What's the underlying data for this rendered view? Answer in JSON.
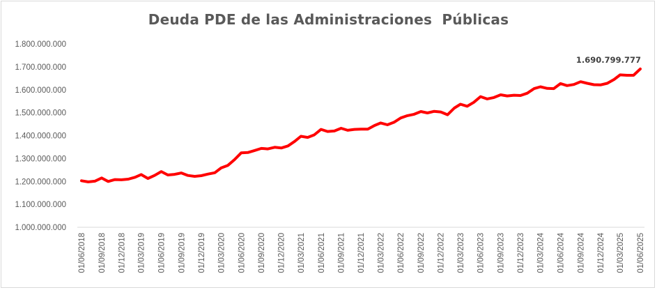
{
  "chart_data": {
    "type": "line",
    "title": "Deuda PDE de las Administraciones  Públicas",
    "xlabel": "",
    "ylabel": "",
    "ylim": [
      1000000000,
      1800000000
    ],
    "y_ticks": [
      "1.000.000.000",
      "1.100.000.000",
      "1.200.000.000",
      "1.300.000.000",
      "1.400.000.000",
      "1.500.000.000",
      "1.600.000.000",
      "1.700.000.000",
      "1.800.000.000"
    ],
    "x_ticks": [
      "01/06/2018",
      "01/09/2018",
      "01/12/2018",
      "01/03/2019",
      "01/06/2019",
      "01/09/2019",
      "01/12/2019",
      "01/03/2020",
      "01/06/2020",
      "01/09/2020",
      "01/12/2020",
      "01/03/2021",
      "01/06/2021",
      "01/09/2021",
      "01/12/2021",
      "01/03/2022",
      "01/06/2022",
      "01/09/2022",
      "01/12/2022",
      "01/03/2023",
      "01/06/2023",
      "01/09/2023",
      "01/12/2023",
      "01/03/2024",
      "01/06/2024",
      "01/09/2024",
      "01/12/2024",
      "01/03/2025",
      "01/06/2025"
    ],
    "grid": false,
    "series": [
      {
        "color": "#ff0000",
        "points": [
          [
            "2018-06-01",
            1203000000
          ],
          [
            "2018-07-01",
            1198000000
          ],
          [
            "2018-08-01",
            1201000000
          ],
          [
            "2018-09-01",
            1215000000
          ],
          [
            "2018-10-01",
            1200000000
          ],
          [
            "2018-11-01",
            1208000000
          ],
          [
            "2018-12-01",
            1207000000
          ],
          [
            "2019-01-01",
            1210000000
          ],
          [
            "2019-02-01",
            1218000000
          ],
          [
            "2019-03-01",
            1230000000
          ],
          [
            "2019-04-01",
            1213000000
          ],
          [
            "2019-05-01",
            1226000000
          ],
          [
            "2019-06-01",
            1243000000
          ],
          [
            "2019-07-01",
            1228000000
          ],
          [
            "2019-08-01",
            1231000000
          ],
          [
            "2019-09-01",
            1237000000
          ],
          [
            "2019-10-01",
            1226000000
          ],
          [
            "2019-11-01",
            1222000000
          ],
          [
            "2019-12-01",
            1225000000
          ],
          [
            "2020-01-01",
            1232000000
          ],
          [
            "2020-02-01",
            1238000000
          ],
          [
            "2020-03-01",
            1259000000
          ],
          [
            "2020-04-01",
            1270000000
          ],
          [
            "2020-05-01",
            1295000000
          ],
          [
            "2020-06-01",
            1325000000
          ],
          [
            "2020-07-01",
            1326000000
          ],
          [
            "2020-08-01",
            1335000000
          ],
          [
            "2020-09-01",
            1344000000
          ],
          [
            "2020-10-01",
            1342000000
          ],
          [
            "2020-11-01",
            1349000000
          ],
          [
            "2020-12-01",
            1346000000
          ],
          [
            "2021-01-01",
            1355000000
          ],
          [
            "2021-02-01",
            1375000000
          ],
          [
            "2021-03-01",
            1397000000
          ],
          [
            "2021-04-01",
            1392000000
          ],
          [
            "2021-05-01",
            1403000000
          ],
          [
            "2021-06-01",
            1427000000
          ],
          [
            "2021-07-01",
            1418000000
          ],
          [
            "2021-08-01",
            1420000000
          ],
          [
            "2021-09-01",
            1432000000
          ],
          [
            "2021-10-01",
            1423000000
          ],
          [
            "2021-11-01",
            1427000000
          ],
          [
            "2021-12-01",
            1428000000
          ],
          [
            "2022-01-01",
            1428000000
          ],
          [
            "2022-02-01",
            1444000000
          ],
          [
            "2022-03-01",
            1455000000
          ],
          [
            "2022-04-01",
            1447000000
          ],
          [
            "2022-05-01",
            1458000000
          ],
          [
            "2022-06-01",
            1477000000
          ],
          [
            "2022-07-01",
            1487000000
          ],
          [
            "2022-08-01",
            1493000000
          ],
          [
            "2022-09-01",
            1505000000
          ],
          [
            "2022-10-01",
            1499000000
          ],
          [
            "2022-11-01",
            1506000000
          ],
          [
            "2022-12-01",
            1503000000
          ],
          [
            "2023-01-01",
            1491000000
          ],
          [
            "2023-02-01",
            1520000000
          ],
          [
            "2023-03-01",
            1537000000
          ],
          [
            "2023-04-01",
            1528000000
          ],
          [
            "2023-05-01",
            1545000000
          ],
          [
            "2023-06-01",
            1570000000
          ],
          [
            "2023-07-01",
            1560000000
          ],
          [
            "2023-08-01",
            1566000000
          ],
          [
            "2023-09-01",
            1578000000
          ],
          [
            "2023-10-01",
            1573000000
          ],
          [
            "2023-11-01",
            1576000000
          ],
          [
            "2023-12-01",
            1575000000
          ],
          [
            "2024-01-01",
            1585000000
          ],
          [
            "2024-02-01",
            1605000000
          ],
          [
            "2024-03-01",
            1613000000
          ],
          [
            "2024-04-01",
            1606000000
          ],
          [
            "2024-05-01",
            1605000000
          ],
          [
            "2024-06-01",
            1627000000
          ],
          [
            "2024-07-01",
            1618000000
          ],
          [
            "2024-08-01",
            1623000000
          ],
          [
            "2024-09-01",
            1635000000
          ],
          [
            "2024-10-01",
            1628000000
          ],
          [
            "2024-11-01",
            1622000000
          ],
          [
            "2024-12-01",
            1621000000
          ],
          [
            "2025-01-01",
            1628000000
          ],
          [
            "2025-02-01",
            1645000000
          ],
          [
            "2025-03-01",
            1665000000
          ],
          [
            "2025-04-01",
            1663000000
          ],
          [
            "2025-05-01",
            1663000000
          ],
          [
            "2025-06-01",
            1690799777
          ]
        ]
      }
    ],
    "data_labels": [
      {
        "x": "2025-06-01",
        "y": 1690799777,
        "text": "1.690.799.777"
      }
    ]
  }
}
